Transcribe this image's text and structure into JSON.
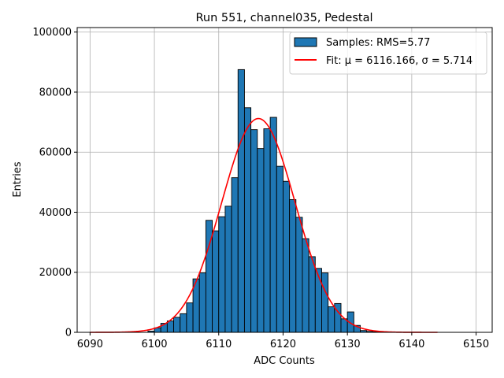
{
  "chart_data": {
    "type": "bar",
    "title": "Run 551, channel035, Pedestal",
    "xlabel": "ADC Counts",
    "ylabel": "Entries",
    "xlim": [
      6088,
      6152.5
    ],
    "ylim": [
      0,
      101500
    ],
    "xticks": [
      6090,
      6100,
      6110,
      6120,
      6130,
      6140,
      6150
    ],
    "yticks": [
      0,
      20000,
      40000,
      60000,
      80000,
      100000
    ],
    "grid": true,
    "legend_position": "upper right",
    "colors": {
      "bars": "#1f77b4",
      "bar_edge": "#000000",
      "fit": "#ff0000",
      "grid": "#b0b0b0"
    },
    "histogram": {
      "name": "Samples: RMS=5.77",
      "bin_width": 1,
      "bins": [
        {
          "x": 6099,
          "y": 400
        },
        {
          "x": 6100,
          "y": 1500
        },
        {
          "x": 6101,
          "y": 3000
        },
        {
          "x": 6102,
          "y": 3800
        },
        {
          "x": 6103,
          "y": 5000
        },
        {
          "x": 6104,
          "y": 6200
        },
        {
          "x": 6105,
          "y": 9800
        },
        {
          "x": 6106,
          "y": 17800
        },
        {
          "x": 6107,
          "y": 19800
        },
        {
          "x": 6108,
          "y": 37300
        },
        {
          "x": 6109,
          "y": 33800
        },
        {
          "x": 6110,
          "y": 38500
        },
        {
          "x": 6111,
          "y": 42000
        },
        {
          "x": 6112,
          "y": 51500
        },
        {
          "x": 6113,
          "y": 87500
        },
        {
          "x": 6114,
          "y": 74800
        },
        {
          "x": 6115,
          "y": 67500
        },
        {
          "x": 6116,
          "y": 61200
        },
        {
          "x": 6117,
          "y": 67800
        },
        {
          "x": 6118,
          "y": 71600
        },
        {
          "x": 6119,
          "y": 55300
        },
        {
          "x": 6120,
          "y": 50300
        },
        {
          "x": 6121,
          "y": 44200
        },
        {
          "x": 6122,
          "y": 38300
        },
        {
          "x": 6123,
          "y": 31200
        },
        {
          "x": 6124,
          "y": 25200
        },
        {
          "x": 6125,
          "y": 21300
        },
        {
          "x": 6126,
          "y": 19800
        },
        {
          "x": 6127,
          "y": 8500
        },
        {
          "x": 6128,
          "y": 9600
        },
        {
          "x": 6129,
          "y": 4500
        },
        {
          "x": 6130,
          "y": 6800
        },
        {
          "x": 6131,
          "y": 2300
        },
        {
          "x": 6132,
          "y": 600
        },
        {
          "x": 6133,
          "y": 300
        },
        {
          "x": 6134,
          "y": 150
        }
      ]
    },
    "fit": {
      "name": "Fit: μ = 6116.166, σ = 5.714",
      "mu": 6116.166,
      "sigma": 5.714,
      "amplitude": 71200,
      "x_range": [
        6090,
        6144
      ]
    }
  }
}
